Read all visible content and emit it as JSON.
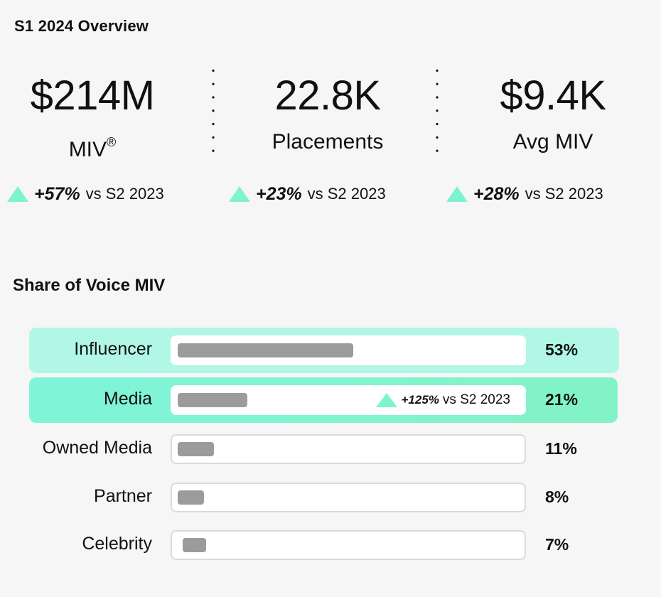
{
  "overview": {
    "title": "S1 2024 Overview",
    "kpis": [
      {
        "value": "$214M",
        "label": "MIV",
        "label_sup": "®",
        "delta": "+57%",
        "delta_vs": "vs S2 2023",
        "trend": "up"
      },
      {
        "value": "22.8K",
        "label": "Placements",
        "label_sup": "",
        "delta": "+23%",
        "delta_vs": "vs S2 2023",
        "trend": "up"
      },
      {
        "value": "$9.4K",
        "label": "Avg MIV",
        "label_sup": "",
        "delta": "+28%",
        "delta_vs": "vs S2 2023",
        "trend": "up"
      }
    ]
  },
  "share_of_voice": {
    "title": "Share of Voice MIV",
    "media_delta": {
      "value": "+125%",
      "vs": "vs S2 2023",
      "trend": "up"
    }
  },
  "colors": {
    "accent_triangle": "#7ef3cf",
    "influencer_row": "#b0f8e5",
    "media_row": "#80f4d9",
    "bar_fill": "#9b9b9b",
    "background": "#f6f6f6"
  },
  "chart_data": {
    "type": "bar",
    "orientation": "horizontal",
    "title": "Share of Voice MIV",
    "categories": [
      "Influencer",
      "Media",
      "Owned Media",
      "Partner",
      "Celebrity"
    ],
    "values": [
      53,
      21,
      11,
      8,
      7
    ],
    "value_labels": [
      "53%",
      "21%",
      "11%",
      "8%",
      "7%"
    ],
    "unit": "%",
    "xlim": [
      0,
      100
    ],
    "highlighted": [
      "Influencer",
      "Media"
    ],
    "annotations": [
      {
        "category": "Media",
        "text": "+125% vs S2 2023"
      }
    ],
    "grid": false,
    "legend": "none"
  }
}
